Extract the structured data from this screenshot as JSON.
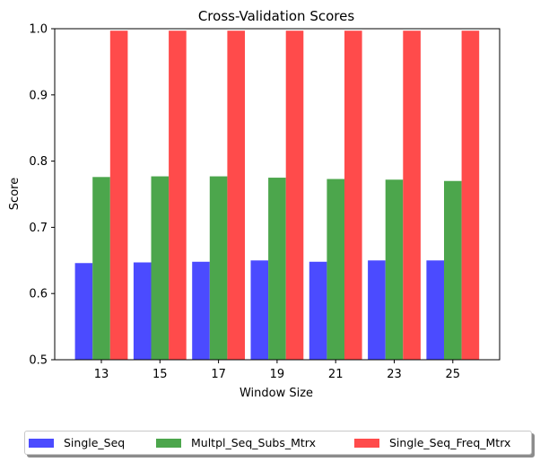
{
  "chart_data": {
    "type": "bar",
    "title": "Cross-Validation Scores",
    "xlabel": "Window Size",
    "ylabel": "Score",
    "categories": [
      "13",
      "15",
      "17",
      "19",
      "21",
      "23",
      "25"
    ],
    "ylim": [
      0.5,
      1.0
    ],
    "yticks": [
      "0.5",
      "0.6",
      "0.7",
      "0.8",
      "0.9",
      "1.0"
    ],
    "grid": false,
    "legend_position": "bottom-center",
    "series": [
      {
        "name": "Single_Seq",
        "color": "#4b4bff",
        "values": [
          0.646,
          0.647,
          0.648,
          0.65,
          0.648,
          0.65,
          0.65
        ]
      },
      {
        "name": "Multpl_Seq_Subs_Mtrx",
        "color": "#4ca64c",
        "values": [
          0.776,
          0.777,
          0.777,
          0.775,
          0.773,
          0.772,
          0.77
        ]
      },
      {
        "name": "Single_Seq_Freq_Mtrx",
        "color": "#ff4b4b",
        "values": [
          0.997,
          0.997,
          0.997,
          0.997,
          0.997,
          0.997,
          0.997
        ]
      }
    ]
  }
}
